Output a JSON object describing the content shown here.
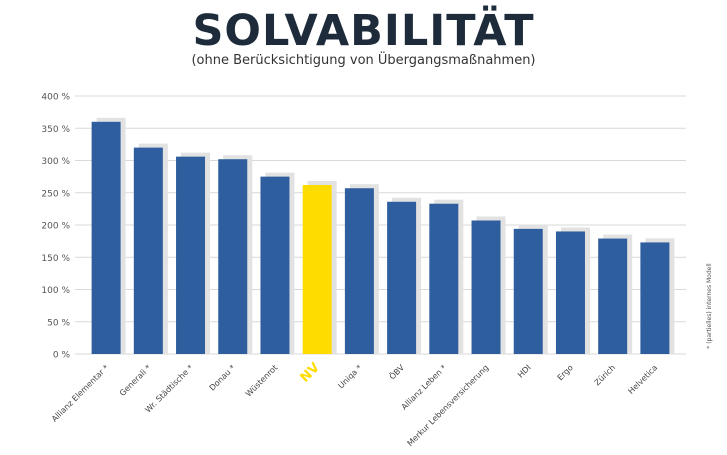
{
  "chart_data": {
    "type": "bar",
    "title": "SOLVABILITÄT",
    "subtitle": "(ohne Berücksichtigung von Übergangsmaßnahmen)",
    "categories": [
      "Allianz Elementar *",
      "Generali *",
      "Wr. Städtische *",
      "Donau *",
      "Wüstenrot",
      "NV",
      "Uniqa *",
      "ÖBV",
      "Allianz Leben *",
      "Merkur Lebensversicherung",
      "HDI",
      "Ergo",
      "Zürich",
      "Helvetica"
    ],
    "values": [
      360,
      320,
      306,
      302,
      275,
      262,
      257,
      236,
      233,
      207,
      194,
      190,
      179,
      173
    ],
    "highlight_category": "NV",
    "y_ticks": [
      "0 %",
      "50 %",
      "100 %",
      "150 %",
      "200 %",
      "250 %",
      "300 %",
      "350 %",
      "400 %"
    ],
    "ylim": [
      0,
      400
    ],
    "grid": true,
    "colors": {
      "bar": "#2f5e9e",
      "highlight": "#ffdc00",
      "shadow": "#e2e2e2",
      "grid": "#d9d9d9",
      "title": "#1d2b3a"
    },
    "footnote": "* (partielles) internes Modell"
  }
}
